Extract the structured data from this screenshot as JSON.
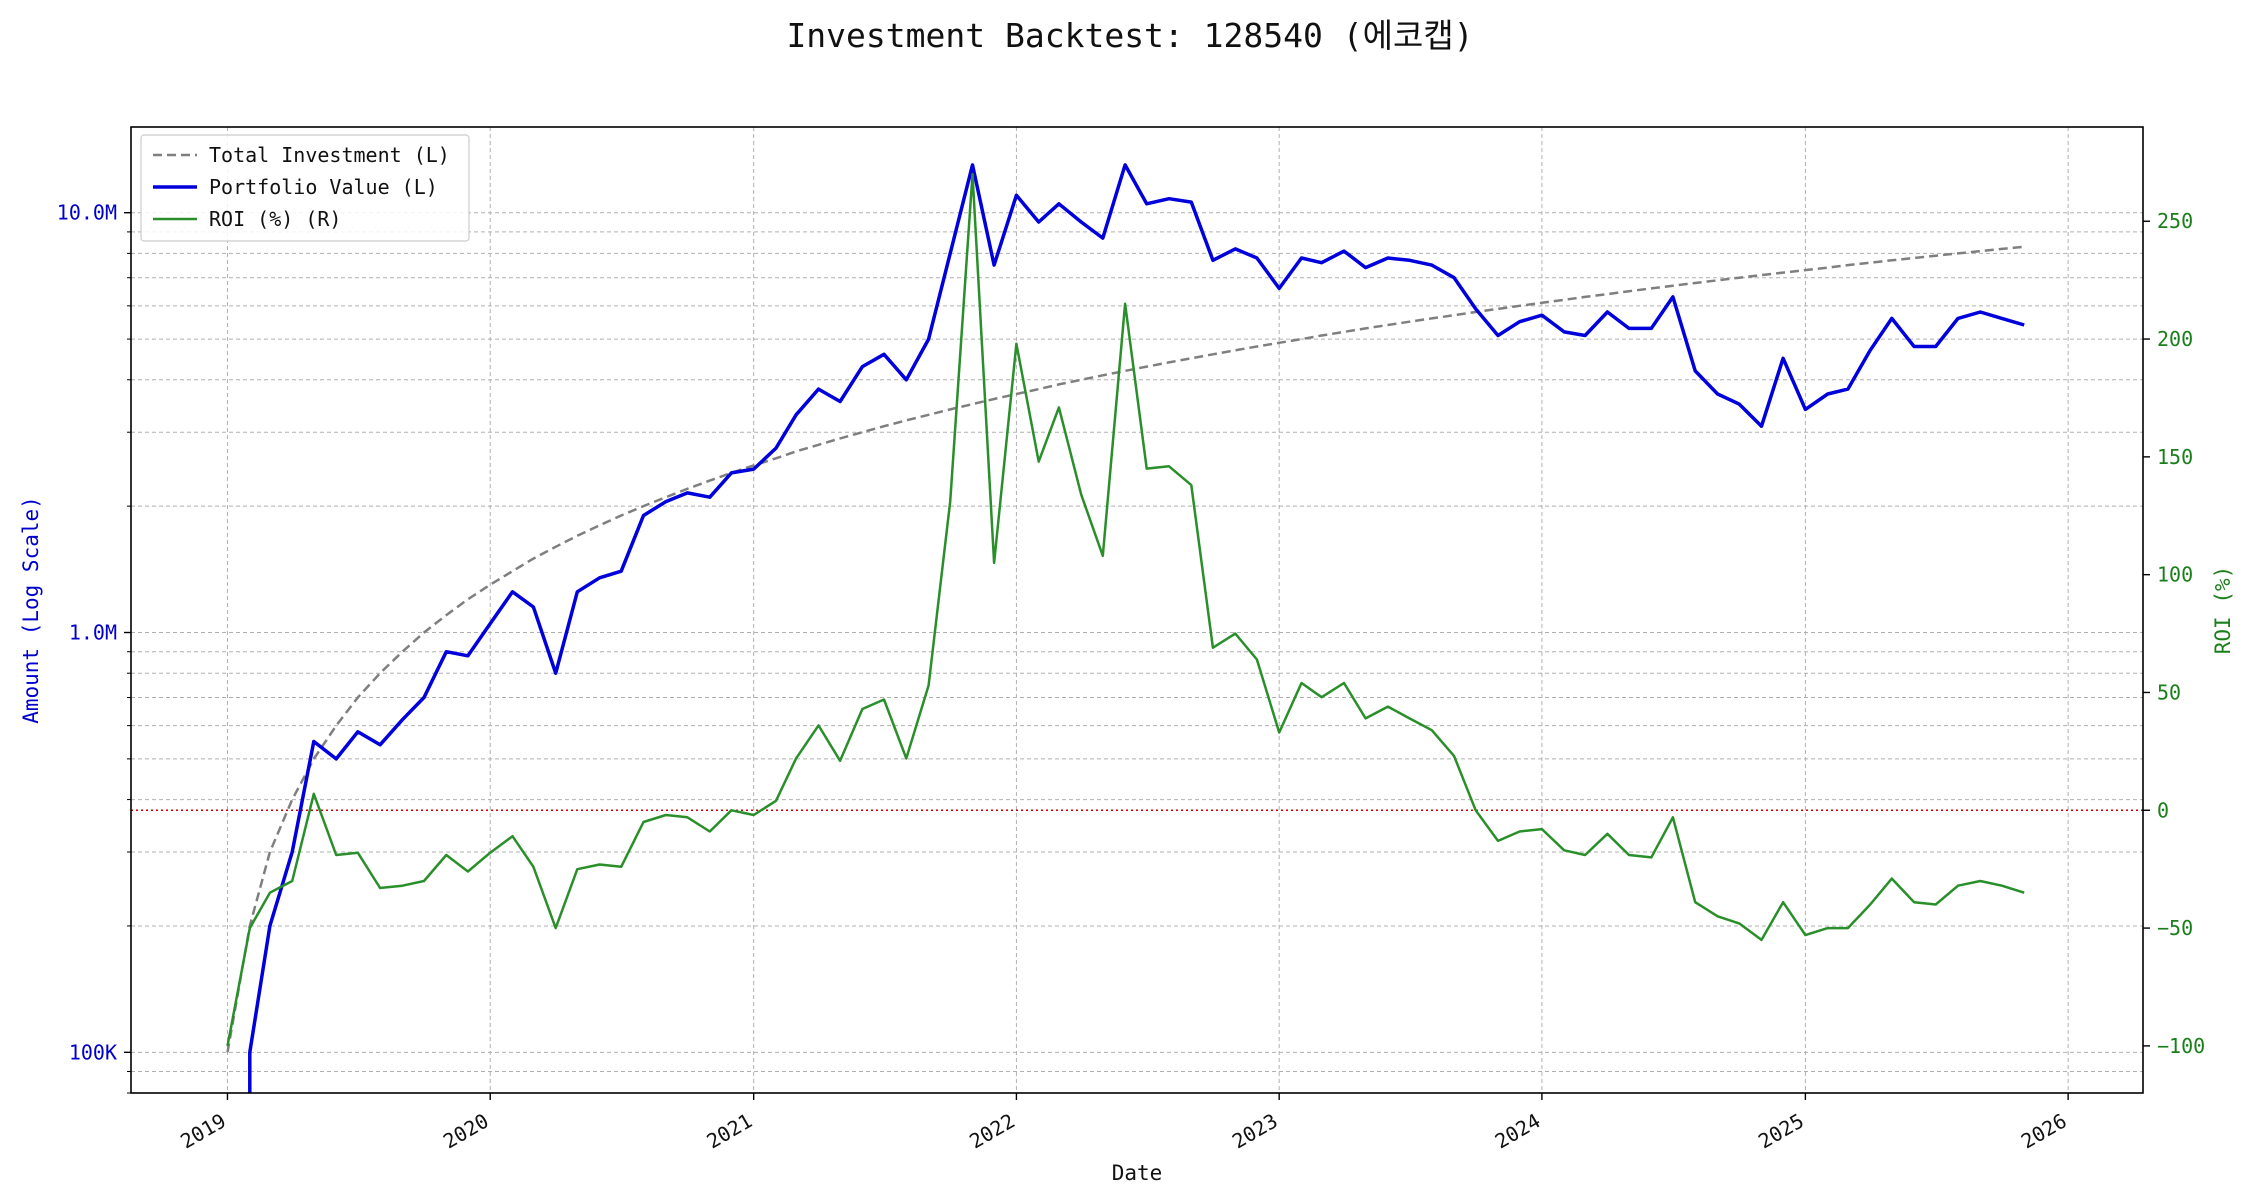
{
  "chart_data": {
    "type": "line",
    "title": "Investment Backtest: 128540 (에코캡)",
    "xlabel": "Date",
    "ylabel_left": "Amount (Log Scale)",
    "ylabel_right": "ROI (%)",
    "left_axis_scale": "log",
    "left_ylim": [
      80000,
      16000000
    ],
    "right_ylim": [
      -120,
      290
    ],
    "x_range": [
      "2018-08-20",
      "2026-04-15"
    ],
    "x_ticks": [
      "2019-01-01",
      "2020-01-01",
      "2021-01-01",
      "2022-01-01",
      "2023-01-01",
      "2024-01-01",
      "2025-01-01",
      "2026-01-01"
    ],
    "x_tick_labels": [
      "2019",
      "2020",
      "2021",
      "2022",
      "2023",
      "2024",
      "2025",
      "2026"
    ],
    "left_ticks": [
      100000,
      1000000,
      10000000
    ],
    "left_tick_labels": [
      "100K",
      "1.0M",
      "10.0M"
    ],
    "right_ticks": [
      -100,
      -50,
      0,
      50,
      100,
      150,
      200,
      250
    ],
    "right_tick_labels": [
      "−100",
      "−50",
      "0",
      "50",
      "100",
      "150",
      "200",
      "250"
    ],
    "grid": true,
    "legend_position": "top-left",
    "zero_reference_line": {
      "value": 0,
      "axis": "right",
      "style": "dotted",
      "color": "#cc0000"
    },
    "colors": {
      "total_investment": "#7f7f7f",
      "portfolio": "#0000dd",
      "roi": "#2a8f2a",
      "left_axis_text": "#0000cc",
      "right_axis_text": "#1a7f1a"
    },
    "dates": [
      "2019-01-01",
      "2019-02-01",
      "2019-03-01",
      "2019-04-01",
      "2019-05-01",
      "2019-06-01",
      "2019-07-01",
      "2019-08-01",
      "2019-09-01",
      "2019-10-01",
      "2019-11-01",
      "2019-12-01",
      "2020-01-01",
      "2020-02-01",
      "2020-03-01",
      "2020-04-01",
      "2020-05-01",
      "2020-06-01",
      "2020-07-01",
      "2020-08-01",
      "2020-09-01",
      "2020-10-01",
      "2020-11-01",
      "2020-12-01",
      "2021-01-01",
      "2021-02-01",
      "2021-03-01",
      "2021-04-01",
      "2021-05-01",
      "2021-06-01",
      "2021-07-01",
      "2021-08-01",
      "2021-09-01",
      "2021-10-01",
      "2021-11-01",
      "2021-12-01",
      "2022-01-01",
      "2022-02-01",
      "2022-03-01",
      "2022-04-01",
      "2022-05-01",
      "2022-06-01",
      "2022-07-01",
      "2022-08-01",
      "2022-09-01",
      "2022-10-01",
      "2022-11-01",
      "2022-12-01",
      "2023-01-01",
      "2023-02-01",
      "2023-03-01",
      "2023-04-01",
      "2023-05-01",
      "2023-06-01",
      "2023-07-01",
      "2023-08-01",
      "2023-09-01",
      "2023-10-01",
      "2023-11-01",
      "2023-12-01",
      "2024-01-01",
      "2024-02-01",
      "2024-03-01",
      "2024-04-01",
      "2024-05-01",
      "2024-06-01",
      "2024-07-01",
      "2024-08-01",
      "2024-09-01",
      "2024-10-01",
      "2024-11-01",
      "2024-12-01",
      "2025-01-01",
      "2025-02-01",
      "2025-03-01",
      "2025-04-01",
      "2025-05-01",
      "2025-06-01",
      "2025-07-01",
      "2025-08-01",
      "2025-09-01",
      "2025-10-01",
      "2025-11-01"
    ],
    "series": [
      {
        "name": "Total Investment (L)",
        "axis": "left",
        "style": "dashed",
        "values": [
          100000,
          200000,
          300000,
          400000,
          500000,
          600000,
          700000,
          800000,
          900000,
          1000000,
          1100000,
          1200000,
          1300000,
          1400000,
          1500000,
          1600000,
          1700000,
          1800000,
          1900000,
          2000000,
          2100000,
          2200000,
          2300000,
          2400000,
          2500000,
          2600000,
          2700000,
          2800000,
          2900000,
          3000000,
          3100000,
          3200000,
          3300000,
          3400000,
          3500000,
          3600000,
          3700000,
          3800000,
          3900000,
          4000000,
          4100000,
          4200000,
          4300000,
          4400000,
          4500000,
          4600000,
          4700000,
          4800000,
          4900000,
          5000000,
          5100000,
          5200000,
          5300000,
          5400000,
          5500000,
          5600000,
          5700000,
          5800000,
          5900000,
          6000000,
          6100000,
          6200000,
          6300000,
          6400000,
          6500000,
          6600000,
          6700000,
          6800000,
          6900000,
          7000000,
          7100000,
          7200000,
          7300000,
          7400000,
          7500000,
          7600000,
          7700000,
          7800000,
          7900000,
          8000000,
          8100000,
          8200000,
          8300000
        ]
      },
      {
        "name": "Portfolio Value (L)",
        "axis": "left",
        "style": "solid",
        "values": [
          null,
          100000,
          200000,
          300000,
          550000,
          500000,
          580000,
          540000,
          620000,
          700000,
          900000,
          880000,
          1050000,
          1250000,
          1150000,
          800000,
          1250000,
          1350000,
          1400000,
          1900000,
          2050000,
          2150000,
          2100000,
          2400000,
          2450000,
          2750000,
          3300000,
          3800000,
          3550000,
          4300000,
          4600000,
          4000000,
          5000000,
          8000000,
          13000000,
          7500000,
          11000000,
          9500000,
          10500000,
          9500000,
          8700000,
          13000000,
          10500000,
          10800000,
          10600000,
          7700000,
          8200000,
          7800000,
          6600000,
          7800000,
          7600000,
          8100000,
          7400000,
          7800000,
          7700000,
          7500000,
          7000000,
          5900000,
          5100000,
          5500000,
          5700000,
          5200000,
          5100000,
          5800000,
          5300000,
          5300000,
          6300000,
          4200000,
          3700000,
          3500000,
          3100000,
          4500000,
          3400000,
          3700000,
          3800000,
          4700000,
          5600000,
          4800000,
          4800000,
          5600000,
          5800000,
          5600000,
          5400000
        ]
      },
      {
        "name": "ROI (%) (R)",
        "axis": "right",
        "style": "solid",
        "values": [
          -100,
          -50,
          -35,
          -30,
          7,
          -19,
          -18,
          -33,
          -32,
          -30,
          -19,
          -26,
          -18,
          -11,
          -24,
          -50,
          -25,
          -23,
          -24,
          -5,
          -2,
          -3,
          -9,
          0,
          -2,
          4,
          22,
          36,
          21,
          43,
          47,
          22,
          53,
          131,
          270,
          105,
          198,
          148,
          171,
          134,
          108,
          215,
          145,
          146,
          138,
          69,
          75,
          64,
          33,
          54,
          48,
          54,
          39,
          44,
          39,
          34,
          23,
          0,
          -13,
          -9,
          -8,
          -17,
          -19,
          -10,
          -19,
          -20,
          -3,
          -39,
          -45,
          -48,
          -55,
          -39,
          -53,
          -50,
          -50,
          -40,
          -29,
          -39,
          -40,
          -32,
          -30,
          -32,
          -35
        ]
      }
    ]
  }
}
